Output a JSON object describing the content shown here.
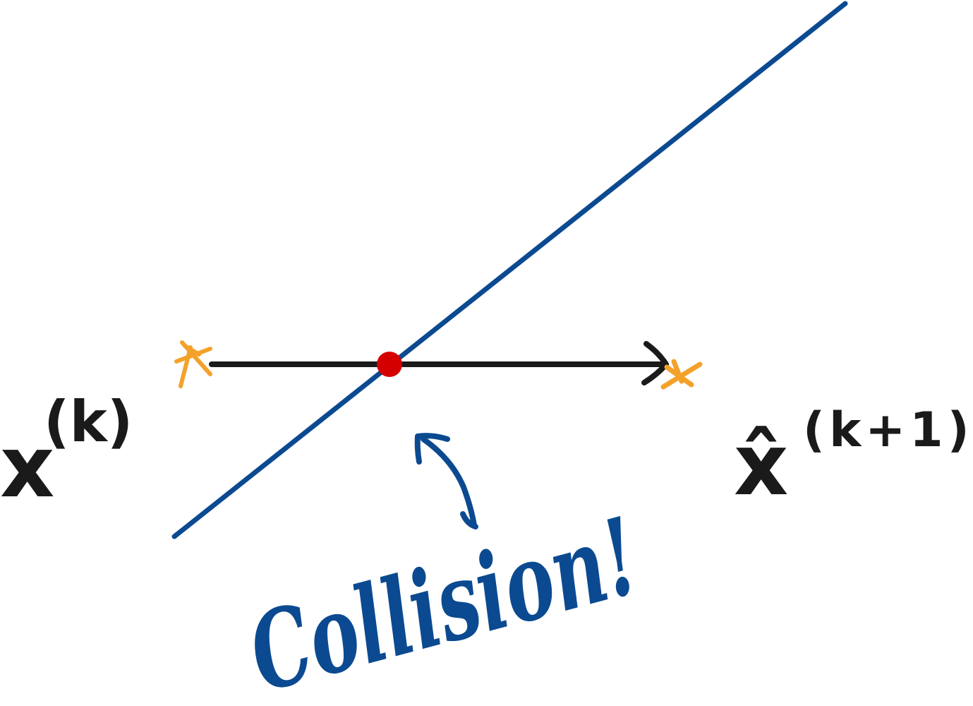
{
  "labels": {
    "start_point": "x",
    "start_superscript": "(k)",
    "end_point": "x̂",
    "end_superscript": "(k+1)",
    "annotation": "Collision!"
  },
  "colors": {
    "obstacle_line": "#0b4a91",
    "step_arrow": "#1a1a1a",
    "endpoint_marks": "#f4a12a",
    "collision_point": "#d40000",
    "annotation": "#0b4a91"
  },
  "icons": {
    "start_marker": "asterisk-icon",
    "end_marker": "asterisk-icon",
    "collision_marker": "dot-icon",
    "pointer": "curved-arrow-icon"
  }
}
